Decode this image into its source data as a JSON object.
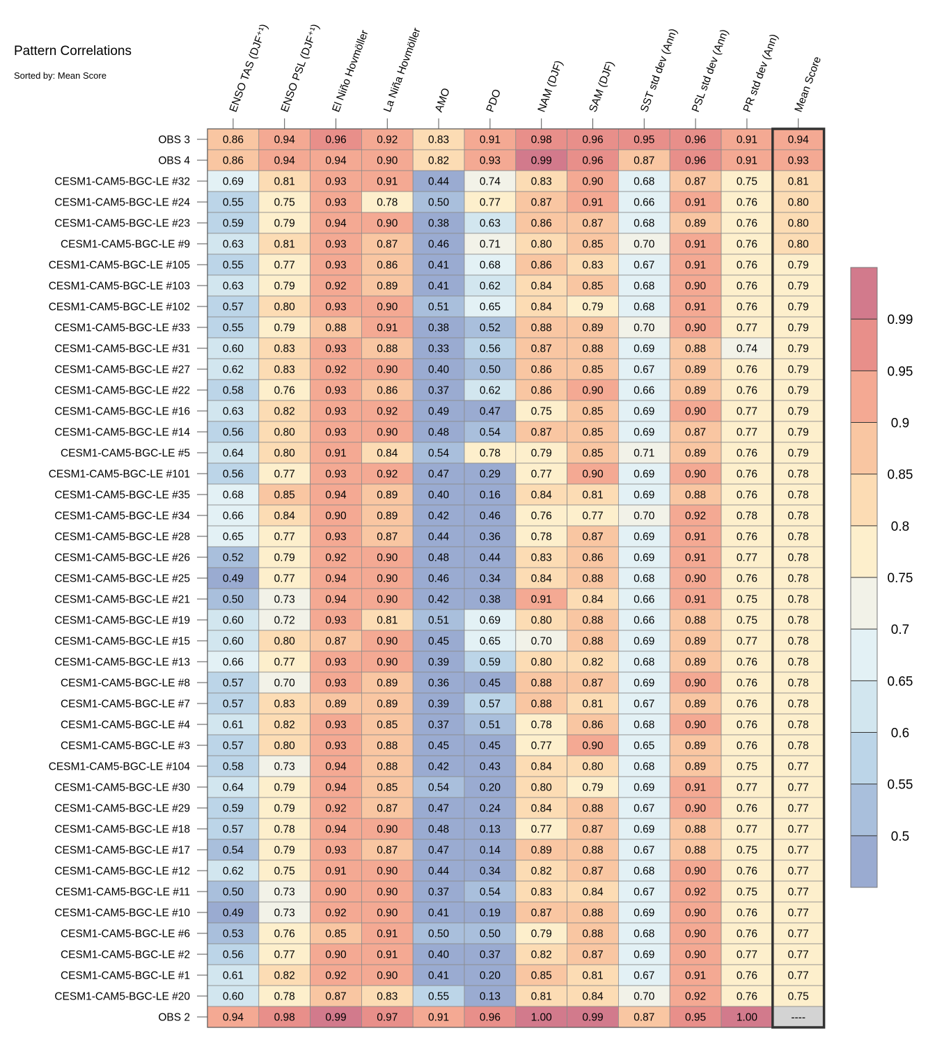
{
  "chart_data": {
    "type": "heatmap",
    "title": "Pattern Correlations",
    "subtitle": "Sorted by: Mean Score",
    "columns": [
      "ENSO TAS (DJF⁺¹)",
      "ENSO PSL (DJF⁺¹)",
      "El Niño Hovmöller",
      "La Niña Hovmöller",
      "AMO",
      "PDO",
      "NAM (DJF)",
      "SAM (DJF)",
      "SST std dev (Ann)",
      "PSL std dev (Ann)",
      "PR std dev (Ann)",
      "Mean Score"
    ],
    "rows": [
      {
        "name": "OBS 3",
        "values": [
          "0.86",
          "0.94",
          "0.96",
          "0.92",
          "0.83",
          "0.91",
          "0.98",
          "0.96",
          "0.95",
          "0.96",
          "0.91",
          "0.94"
        ]
      },
      {
        "name": "OBS 4",
        "values": [
          "0.86",
          "0.94",
          "0.94",
          "0.90",
          "0.82",
          "0.93",
          "0.99",
          "0.96",
          "0.87",
          "0.96",
          "0.91",
          "0.93"
        ]
      },
      {
        "name": "CESM1-CAM5-BGC-LE #32",
        "values": [
          "0.69",
          "0.81",
          "0.93",
          "0.91",
          "0.44",
          "0.74",
          "0.83",
          "0.90",
          "0.68",
          "0.87",
          "0.75",
          "0.81"
        ]
      },
      {
        "name": "CESM1-CAM5-BGC-LE #24",
        "values": [
          "0.55",
          "0.75",
          "0.93",
          "0.78",
          "0.50",
          "0.77",
          "0.87",
          "0.91",
          "0.66",
          "0.91",
          "0.76",
          "0.80"
        ]
      },
      {
        "name": "CESM1-CAM5-BGC-LE #23",
        "values": [
          "0.59",
          "0.79",
          "0.94",
          "0.90",
          "0.38",
          "0.63",
          "0.86",
          "0.87",
          "0.68",
          "0.89",
          "0.76",
          "0.80"
        ]
      },
      {
        "name": "CESM1-CAM5-BGC-LE #9",
        "values": [
          "0.63",
          "0.81",
          "0.93",
          "0.87",
          "0.46",
          "0.71",
          "0.80",
          "0.85",
          "0.70",
          "0.91",
          "0.76",
          "0.80"
        ]
      },
      {
        "name": "CESM1-CAM5-BGC-LE #105",
        "values": [
          "0.55",
          "0.77",
          "0.93",
          "0.86",
          "0.41",
          "0.68",
          "0.86",
          "0.83",
          "0.67",
          "0.91",
          "0.76",
          "0.79"
        ]
      },
      {
        "name": "CESM1-CAM5-BGC-LE #103",
        "values": [
          "0.63",
          "0.79",
          "0.92",
          "0.89",
          "0.41",
          "0.62",
          "0.84",
          "0.85",
          "0.68",
          "0.90",
          "0.76",
          "0.79"
        ]
      },
      {
        "name": "CESM1-CAM5-BGC-LE #102",
        "values": [
          "0.57",
          "0.80",
          "0.93",
          "0.90",
          "0.51",
          "0.65",
          "0.84",
          "0.79",
          "0.68",
          "0.91",
          "0.76",
          "0.79"
        ]
      },
      {
        "name": "CESM1-CAM5-BGC-LE #33",
        "values": [
          "0.55",
          "0.79",
          "0.88",
          "0.91",
          "0.38",
          "0.52",
          "0.88",
          "0.89",
          "0.70",
          "0.90",
          "0.77",
          "0.79"
        ]
      },
      {
        "name": "CESM1-CAM5-BGC-LE #31",
        "values": [
          "0.60",
          "0.83",
          "0.93",
          "0.88",
          "0.33",
          "0.56",
          "0.87",
          "0.88",
          "0.69",
          "0.88",
          "0.74",
          "0.79"
        ]
      },
      {
        "name": "CESM1-CAM5-BGC-LE #27",
        "values": [
          "0.62",
          "0.83",
          "0.92",
          "0.90",
          "0.40",
          "0.50",
          "0.86",
          "0.85",
          "0.67",
          "0.89",
          "0.76",
          "0.79"
        ]
      },
      {
        "name": "CESM1-CAM5-BGC-LE #22",
        "values": [
          "0.58",
          "0.76",
          "0.93",
          "0.86",
          "0.37",
          "0.62",
          "0.86",
          "0.90",
          "0.66",
          "0.89",
          "0.76",
          "0.79"
        ]
      },
      {
        "name": "CESM1-CAM5-BGC-LE #16",
        "values": [
          "0.63",
          "0.82",
          "0.93",
          "0.92",
          "0.49",
          "0.47",
          "0.75",
          "0.85",
          "0.69",
          "0.90",
          "0.77",
          "0.79"
        ]
      },
      {
        "name": "CESM1-CAM5-BGC-LE #14",
        "values": [
          "0.56",
          "0.80",
          "0.93",
          "0.90",
          "0.48",
          "0.54",
          "0.87",
          "0.85",
          "0.69",
          "0.87",
          "0.77",
          "0.79"
        ]
      },
      {
        "name": "CESM1-CAM5-BGC-LE #5",
        "values": [
          "0.64",
          "0.80",
          "0.91",
          "0.84",
          "0.54",
          "0.78",
          "0.79",
          "0.85",
          "0.71",
          "0.89",
          "0.76",
          "0.79"
        ]
      },
      {
        "name": "CESM1-CAM5-BGC-LE #101",
        "values": [
          "0.56",
          "0.77",
          "0.93",
          "0.92",
          "0.47",
          "0.29",
          "0.77",
          "0.90",
          "0.69",
          "0.90",
          "0.76",
          "0.78"
        ]
      },
      {
        "name": "CESM1-CAM5-BGC-LE #35",
        "values": [
          "0.68",
          "0.85",
          "0.94",
          "0.89",
          "0.40",
          "0.16",
          "0.84",
          "0.81",
          "0.69",
          "0.88",
          "0.76",
          "0.78"
        ]
      },
      {
        "name": "CESM1-CAM5-BGC-LE #34",
        "values": [
          "0.66",
          "0.84",
          "0.90",
          "0.89",
          "0.42",
          "0.46",
          "0.76",
          "0.77",
          "0.70",
          "0.92",
          "0.78",
          "0.78"
        ]
      },
      {
        "name": "CESM1-CAM5-BGC-LE #28",
        "values": [
          "0.65",
          "0.77",
          "0.93",
          "0.87",
          "0.44",
          "0.36",
          "0.78",
          "0.87",
          "0.69",
          "0.91",
          "0.76",
          "0.78"
        ]
      },
      {
        "name": "CESM1-CAM5-BGC-LE #26",
        "values": [
          "0.52",
          "0.79",
          "0.92",
          "0.90",
          "0.48",
          "0.44",
          "0.83",
          "0.86",
          "0.69",
          "0.91",
          "0.77",
          "0.78"
        ]
      },
      {
        "name": "CESM1-CAM5-BGC-LE #25",
        "values": [
          "0.49",
          "0.77",
          "0.94",
          "0.90",
          "0.46",
          "0.34",
          "0.84",
          "0.88",
          "0.68",
          "0.90",
          "0.76",
          "0.78"
        ]
      },
      {
        "name": "CESM1-CAM5-BGC-LE #21",
        "values": [
          "0.50",
          "0.73",
          "0.94",
          "0.90",
          "0.42",
          "0.38",
          "0.91",
          "0.84",
          "0.66",
          "0.91",
          "0.75",
          "0.78"
        ]
      },
      {
        "name": "CESM1-CAM5-BGC-LE #19",
        "values": [
          "0.60",
          "0.72",
          "0.93",
          "0.81",
          "0.51",
          "0.69",
          "0.80",
          "0.88",
          "0.66",
          "0.88",
          "0.75",
          "0.78"
        ]
      },
      {
        "name": "CESM1-CAM5-BGC-LE #15",
        "values": [
          "0.60",
          "0.80",
          "0.87",
          "0.90",
          "0.45",
          "0.65",
          "0.70",
          "0.88",
          "0.69",
          "0.89",
          "0.77",
          "0.78"
        ]
      },
      {
        "name": "CESM1-CAM5-BGC-LE #13",
        "values": [
          "0.66",
          "0.77",
          "0.93",
          "0.90",
          "0.39",
          "0.59",
          "0.80",
          "0.82",
          "0.68",
          "0.89",
          "0.76",
          "0.78"
        ]
      },
      {
        "name": "CESM1-CAM5-BGC-LE #8",
        "values": [
          "0.57",
          "0.70",
          "0.93",
          "0.89",
          "0.36",
          "0.45",
          "0.88",
          "0.87",
          "0.69",
          "0.90",
          "0.76",
          "0.78"
        ]
      },
      {
        "name": "CESM1-CAM5-BGC-LE #7",
        "values": [
          "0.57",
          "0.83",
          "0.89",
          "0.89",
          "0.39",
          "0.57",
          "0.88",
          "0.81",
          "0.67",
          "0.89",
          "0.76",
          "0.78"
        ]
      },
      {
        "name": "CESM1-CAM5-BGC-LE #4",
        "values": [
          "0.61",
          "0.82",
          "0.93",
          "0.85",
          "0.37",
          "0.51",
          "0.78",
          "0.86",
          "0.68",
          "0.90",
          "0.76",
          "0.78"
        ]
      },
      {
        "name": "CESM1-CAM5-BGC-LE #3",
        "values": [
          "0.57",
          "0.80",
          "0.93",
          "0.88",
          "0.45",
          "0.45",
          "0.77",
          "0.90",
          "0.65",
          "0.89",
          "0.76",
          "0.78"
        ]
      },
      {
        "name": "CESM1-CAM5-BGC-LE #104",
        "values": [
          "0.58",
          "0.73",
          "0.94",
          "0.88",
          "0.42",
          "0.43",
          "0.84",
          "0.80",
          "0.68",
          "0.89",
          "0.75",
          "0.77"
        ]
      },
      {
        "name": "CESM1-CAM5-BGC-LE #30",
        "values": [
          "0.64",
          "0.79",
          "0.94",
          "0.85",
          "0.54",
          "0.20",
          "0.80",
          "0.79",
          "0.69",
          "0.91",
          "0.77",
          "0.77"
        ]
      },
      {
        "name": "CESM1-CAM5-BGC-LE #29",
        "values": [
          "0.59",
          "0.79",
          "0.92",
          "0.87",
          "0.47",
          "0.24",
          "0.84",
          "0.88",
          "0.67",
          "0.90",
          "0.76",
          "0.77"
        ]
      },
      {
        "name": "CESM1-CAM5-BGC-LE #18",
        "values": [
          "0.57",
          "0.78",
          "0.94",
          "0.90",
          "0.48",
          "0.13",
          "0.77",
          "0.87",
          "0.69",
          "0.88",
          "0.77",
          "0.77"
        ]
      },
      {
        "name": "CESM1-CAM5-BGC-LE #17",
        "values": [
          "0.54",
          "0.79",
          "0.93",
          "0.87",
          "0.47",
          "0.14",
          "0.89",
          "0.88",
          "0.67",
          "0.88",
          "0.75",
          "0.77"
        ]
      },
      {
        "name": "CESM1-CAM5-BGC-LE #12",
        "values": [
          "0.62",
          "0.75",
          "0.91",
          "0.90",
          "0.44",
          "0.34",
          "0.82",
          "0.87",
          "0.68",
          "0.90",
          "0.76",
          "0.77"
        ]
      },
      {
        "name": "CESM1-CAM5-BGC-LE #11",
        "values": [
          "0.50",
          "0.73",
          "0.90",
          "0.90",
          "0.37",
          "0.54",
          "0.83",
          "0.84",
          "0.67",
          "0.92",
          "0.75",
          "0.77"
        ]
      },
      {
        "name": "CESM1-CAM5-BGC-LE #10",
        "values": [
          "0.49",
          "0.73",
          "0.92",
          "0.90",
          "0.41",
          "0.19",
          "0.87",
          "0.88",
          "0.69",
          "0.90",
          "0.76",
          "0.77"
        ]
      },
      {
        "name": "CESM1-CAM5-BGC-LE #6",
        "values": [
          "0.53",
          "0.76",
          "0.85",
          "0.91",
          "0.50",
          "0.50",
          "0.79",
          "0.88",
          "0.68",
          "0.90",
          "0.76",
          "0.77"
        ]
      },
      {
        "name": "CESM1-CAM5-BGC-LE #2",
        "values": [
          "0.56",
          "0.77",
          "0.90",
          "0.91",
          "0.40",
          "0.37",
          "0.82",
          "0.87",
          "0.69",
          "0.90",
          "0.77",
          "0.77"
        ]
      },
      {
        "name": "CESM1-CAM5-BGC-LE #1",
        "values": [
          "0.61",
          "0.82",
          "0.92",
          "0.90",
          "0.41",
          "0.20",
          "0.85",
          "0.81",
          "0.67",
          "0.91",
          "0.76",
          "0.77"
        ]
      },
      {
        "name": "CESM1-CAM5-BGC-LE #20",
        "values": [
          "0.60",
          "0.78",
          "0.87",
          "0.83",
          "0.55",
          "0.13",
          "0.81",
          "0.84",
          "0.70",
          "0.92",
          "0.76",
          "0.75"
        ]
      },
      {
        "name": "OBS 2",
        "values": [
          "0.94",
          "0.98",
          "0.99",
          "0.97",
          "0.91",
          "0.96",
          "1.00",
          "0.99",
          "0.87",
          "0.95",
          "1.00",
          "----"
        ]
      }
    ],
    "colorbar": {
      "tick_labels": [
        "0.5",
        "0.55",
        "0.6",
        "0.65",
        "0.7",
        "0.75",
        "0.8",
        "0.85",
        "0.9",
        "0.95",
        "0.99"
      ],
      "bins": [
        {
          "min": null,
          "max": 0.5,
          "color": "#9aabd1"
        },
        {
          "min": 0.5,
          "max": 0.55,
          "color": "#a9bfdc"
        },
        {
          "min": 0.55,
          "max": 0.6,
          "color": "#bcd5e8"
        },
        {
          "min": 0.6,
          "max": 0.65,
          "color": "#d2e6ef"
        },
        {
          "min": 0.65,
          "max": 0.7,
          "color": "#e3f1f5"
        },
        {
          "min": 0.7,
          "max": 0.75,
          "color": "#f2f2e8"
        },
        {
          "min": 0.75,
          "max": 0.8,
          "color": "#fdefcc"
        },
        {
          "min": 0.8,
          "max": 0.85,
          "color": "#fcdcb4"
        },
        {
          "min": 0.85,
          "max": 0.9,
          "color": "#f9c6a2"
        },
        {
          "min": 0.9,
          "max": 0.95,
          "color": "#f4a993"
        },
        {
          "min": 0.95,
          "max": 0.99,
          "color": "#e88f8a"
        },
        {
          "min": 0.99,
          "max": null,
          "color": "#d27a8c"
        }
      ],
      "missing_color": "#d3d3d3"
    },
    "highlighted_column": "Mean Score"
  }
}
